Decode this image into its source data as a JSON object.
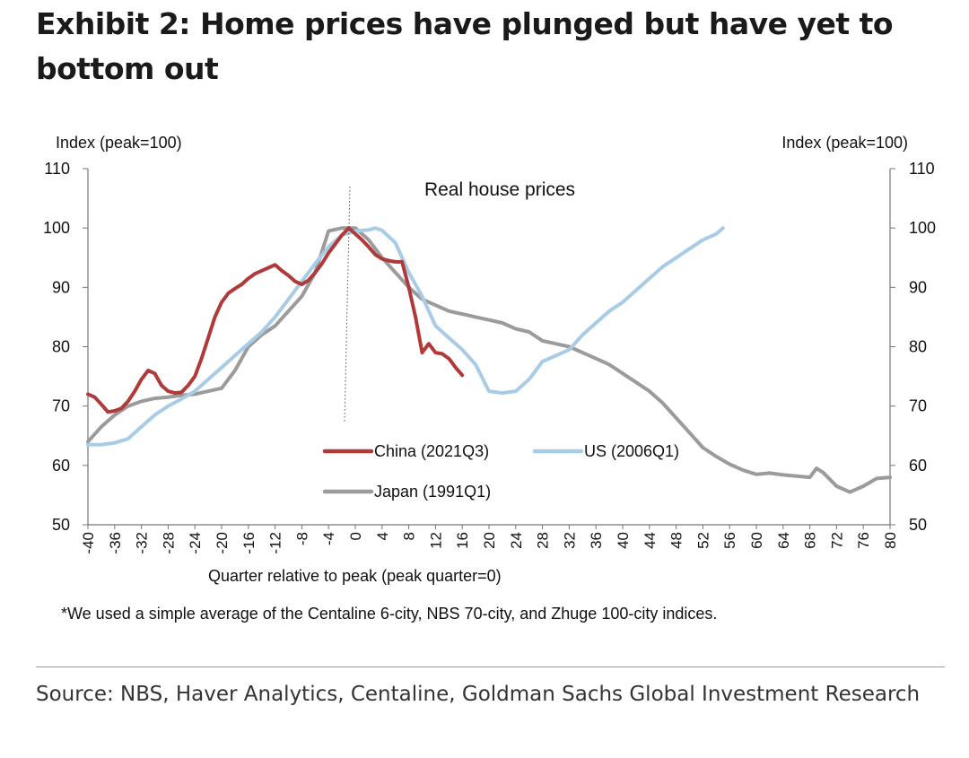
{
  "title": "Exhibit 2: Home prices have plunged but have yet to bottom out",
  "footnote": "*We used a simple average of the Centaline 6-city, NBS 70-city, and Zhuge 100-city indices.",
  "source": "Source: NBS, Haver Analytics, Centaline, Goldman Sachs Global Investment Research",
  "chart_data": {
    "type": "line",
    "title": "Real house prices",
    "xlabel": "Quarter relative to peak (peak quarter=0)",
    "ylabel_left": "Index (peak=100)",
    "ylabel_right": "Index (peak=100)",
    "xlim": [
      -40,
      80
    ],
    "ylim": [
      50,
      110
    ],
    "xticks": [
      "-40",
      "-36",
      "-32",
      "-28",
      "-24",
      "-20",
      "-16",
      "-12",
      "-8",
      "-4",
      "0",
      "4",
      "8",
      "12",
      "16",
      "20",
      "24",
      "28",
      "32",
      "36",
      "40",
      "44",
      "48",
      "52",
      "56",
      "60",
      "64",
      "68",
      "72",
      "76",
      "80"
    ],
    "yticks": [
      "50",
      "60",
      "70",
      "80",
      "90",
      "100",
      "110"
    ],
    "peak_marker_x": 0,
    "grid": false,
    "legend_position": "bottom-center",
    "series": [
      {
        "name": "China (2021Q3)",
        "color": "#b03a3a",
        "x": [
          -40,
          -39,
          -38,
          -37,
          -36,
          -35,
          -34,
          -33,
          -32,
          -31,
          -30,
          -29,
          -28,
          -27,
          -26,
          -25,
          -24,
          -23,
          -22,
          -21,
          -20,
          -19,
          -18,
          -17,
          -16,
          -15,
          -14,
          -13,
          -12,
          -11,
          -10,
          -9,
          -8,
          -7,
          -6,
          -5,
          -4,
          -3,
          -2,
          -1,
          0,
          1,
          2,
          3,
          4,
          5,
          6,
          7,
          8,
          9,
          10,
          11,
          12,
          13,
          14,
          15,
          16
        ],
        "y": [
          72,
          71.5,
          70.3,
          69,
          69.2,
          69.6,
          70.8,
          72.5,
          74.5,
          76,
          75.5,
          73.5,
          72.5,
          72.2,
          72.3,
          73.5,
          75,
          78,
          81.5,
          85,
          87.5,
          89,
          89.8,
          90.5,
          91.5,
          92.3,
          92.8,
          93.3,
          93.8,
          92.8,
          92,
          91,
          90.5,
          91.2,
          92.5,
          94,
          95.8,
          97.3,
          98.8,
          100,
          99,
          98,
          96.8,
          95.5,
          94.8,
          94.5,
          94.3,
          94.3,
          90,
          85,
          79,
          80.5,
          79,
          78.8,
          78,
          76.5,
          75.2
        ]
      },
      {
        "name": "US (2006Q1)",
        "color": "#a8cbe6",
        "x": [
          -40,
          -38,
          -36,
          -34,
          -32,
          -30,
          -28,
          -26,
          -24,
          -22,
          -20,
          -18,
          -16,
          -14,
          -12,
          -10,
          -8,
          -6,
          -4,
          -2,
          0,
          2,
          3,
          4,
          6,
          8,
          10,
          12,
          14,
          16,
          18,
          20,
          22,
          24,
          26,
          28,
          30,
          32,
          34,
          36,
          38,
          40,
          42,
          44,
          46,
          48,
          50,
          52,
          54,
          55
        ],
        "y": [
          63.5,
          63.5,
          63.8,
          64.5,
          66.5,
          68.5,
          70,
          71.2,
          72.5,
          74.5,
          76.5,
          78.5,
          80.5,
          82.5,
          85,
          88,
          91,
          94,
          96.8,
          98.8,
          99.5,
          99.7,
          100,
          99.6,
          97.5,
          92.5,
          88.5,
          83.5,
          81.5,
          79.5,
          77,
          72.5,
          72.2,
          72.5,
          74.5,
          77.5,
          78.5,
          79.5,
          82,
          84,
          86,
          87.5,
          89.5,
          91.5,
          93.5,
          95,
          96.5,
          98,
          99,
          100
        ]
      },
      {
        "name": "Japan (1991Q1)",
        "color": "#9b9b9b",
        "x": [
          -40,
          -38,
          -36,
          -34,
          -32,
          -30,
          -28,
          -26,
          -24,
          -22,
          -20,
          -18,
          -16,
          -14,
          -12,
          -10,
          -8,
          -6,
          -4,
          -2,
          0,
          2,
          4,
          6,
          8,
          10,
          12,
          14,
          16,
          18,
          20,
          22,
          24,
          26,
          28,
          30,
          32,
          34,
          36,
          38,
          40,
          42,
          44,
          46,
          48,
          50,
          52,
          54,
          56,
          58,
          60,
          62,
          64,
          66,
          68,
          69,
          70,
          72,
          74,
          76,
          78,
          80
        ],
        "y": [
          64,
          66.5,
          68.5,
          70,
          70.8,
          71.3,
          71.5,
          71.8,
          72,
          72.5,
          73,
          76,
          80,
          82,
          83.5,
          86,
          88.5,
          92.5,
          99.5,
          100,
          100,
          98,
          95,
          92.5,
          90,
          88,
          87,
          86,
          85.5,
          85,
          84.5,
          84,
          83,
          82.5,
          81,
          80.5,
          80,
          79,
          78,
          77,
          75.5,
          74,
          72.5,
          70.5,
          68,
          65.5,
          63,
          61.5,
          60.2,
          59.2,
          58.5,
          58.7,
          58.4,
          58.2,
          58,
          59.5,
          58.8,
          56.5,
          55.5,
          56.5,
          57.8,
          58
        ]
      }
    ]
  }
}
